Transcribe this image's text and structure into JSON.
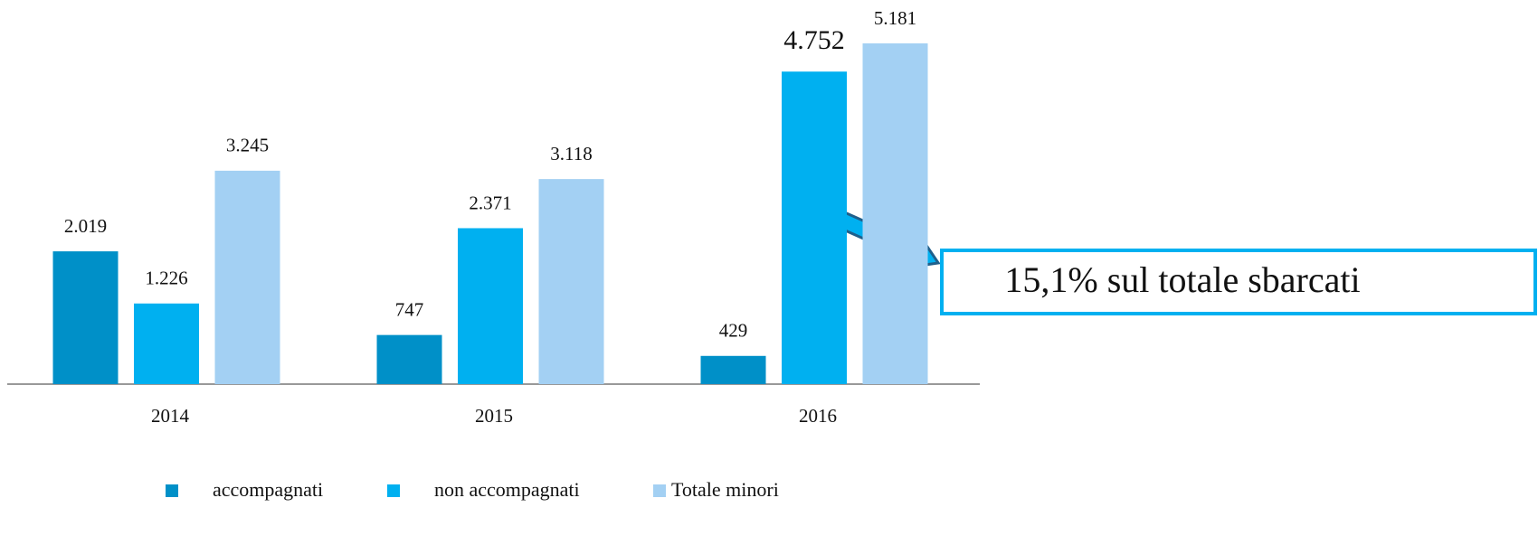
{
  "chart_data": {
    "type": "bar",
    "categories": [
      "2014",
      "2015",
      "2016"
    ],
    "series": [
      {
        "name": "accompagnati",
        "color": "#0090c8",
        "values": [
          2019,
          747,
          429
        ],
        "value_labels": [
          "2.019",
          "747",
          "429"
        ]
      },
      {
        "name": "non accompagnati",
        "color": "#00b0f0",
        "values": [
          1226,
          2371,
          4752
        ],
        "value_labels": [
          "1.226",
          "2.371",
          "4.752"
        ]
      },
      {
        "name": "Totale minori",
        "color": "#a3d0f3",
        "values": [
          3245,
          3118,
          5181
        ],
        "value_labels": [
          "3.245",
          "3.118",
          "5.181"
        ]
      }
    ],
    "annotation": "15,1% sul totale sbarcati",
    "legend": "bottom"
  }
}
